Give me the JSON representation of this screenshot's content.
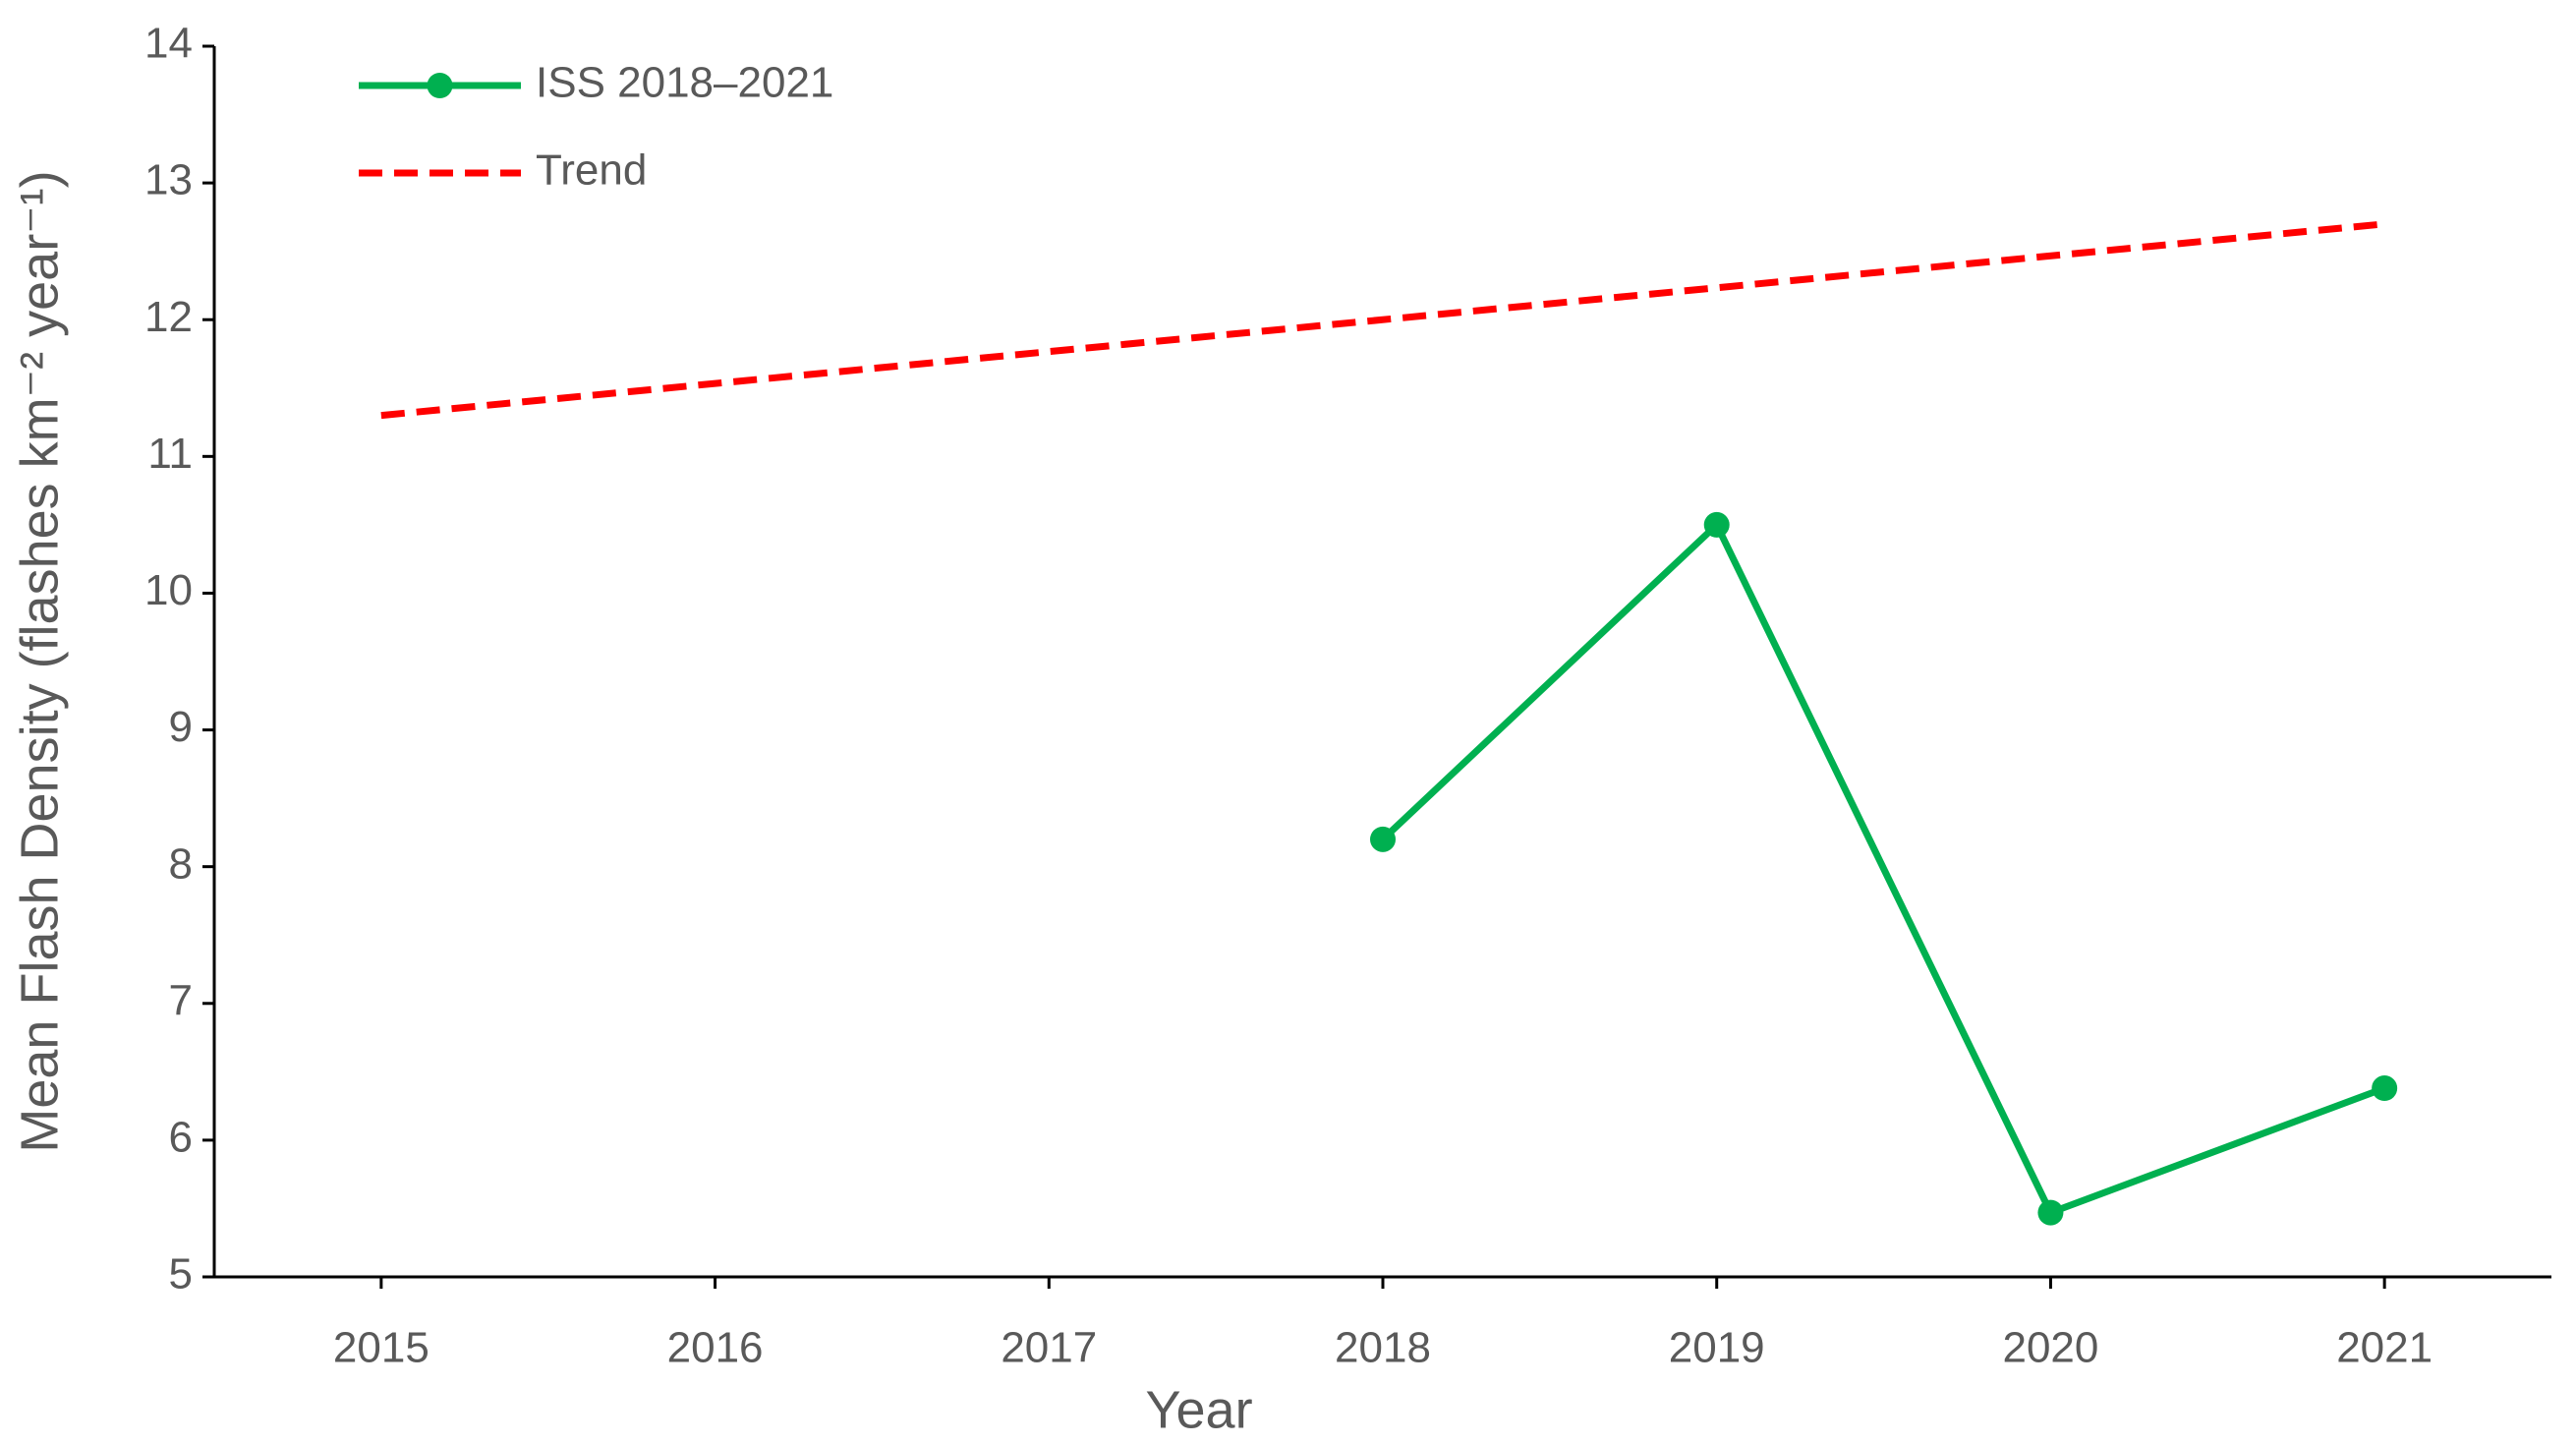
{
  "chart_data": {
    "type": "line",
    "x_label": "Year",
    "y_label": "Mean Flash Density (flashes km⁻² year⁻¹)",
    "xlim": [
      2014.5,
      2021.5
    ],
    "xticks": [
      2015,
      2016,
      2017,
      2018,
      2019,
      2020,
      2021
    ],
    "ylim": [
      5,
      14
    ],
    "yticks": [
      5,
      6,
      7,
      8,
      9,
      10,
      11,
      12,
      13,
      14
    ],
    "legend": "upper left",
    "series": [
      {
        "name": "ISS 2018–2021",
        "color": "#00b050",
        "line_style": "solid",
        "marker": "circle",
        "x": [
          2018,
          2019,
          2020,
          2021
        ],
        "values": [
          8.2,
          10.5,
          5.47,
          6.38
        ]
      },
      {
        "name": "Trend",
        "color": "#ff0000",
        "line_style": "dashed",
        "marker": "none",
        "x": [
          2015,
          2021
        ],
        "values": [
          11.3,
          12.7
        ]
      }
    ]
  }
}
